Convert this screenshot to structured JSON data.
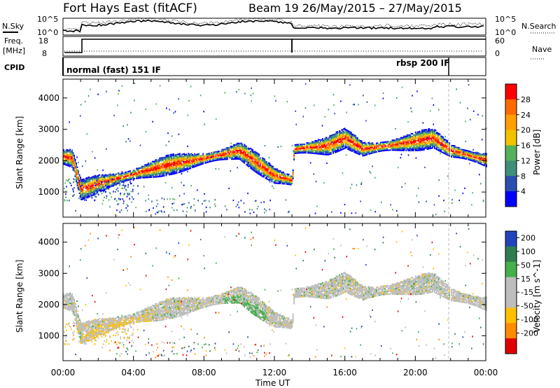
{
  "header": {
    "site": "Fort Hays East (fitACF)",
    "beam": "Beam 19 26/May/2015 – 27/May/2015"
  },
  "top_panels": {
    "nsky_label": "N.Sky",
    "nsearch_label": "N.Search",
    "nsky_ticks": [
      "10^5",
      "10^0"
    ],
    "nsearch_ticks": [
      "10^5",
      "10^0"
    ],
    "freq_label": "Freq.",
    "freq_unit": "[MHz]",
    "freq_ticks": [
      "18",
      "8"
    ],
    "nave_label": "Nave",
    "nave_ticks": [
      "60",
      "0"
    ],
    "cpid_label": "CPID",
    "cpid_modes": [
      "normal (fast) 151 IF",
      "rbsp 200 IF"
    ]
  },
  "colors": {
    "power": [
      "#0000ff",
      "#2a4fb0",
      "#3f8f7a",
      "#55b25a",
      "#f2c200",
      "#ffa000",
      "#ff6a00",
      "#ff0000"
    ],
    "velocity": [
      "#e00000",
      "#ff8c00",
      "#ffc000",
      "#bdbdbd",
      "#bdbdbd",
      "#44b04a",
      "#2e7d4f",
      "#2244bb"
    ]
  },
  "chart_data": [
    {
      "type": "heatmap",
      "name": "power",
      "ylabel": "Slant Range [km]",
      "yticks": [
        "4000",
        "3000",
        "2000",
        "1000"
      ],
      "ylim": [
        200,
        4600
      ],
      "colorbar_label": "Power [dB]",
      "colorbar_ticks": [
        "28",
        "24",
        "20",
        "16",
        "12",
        "8",
        "4"
      ],
      "band_center_km": [
        {
          "t": 0.0,
          "km": 2100
        },
        {
          "t": 0.5,
          "km": 2050
        },
        {
          "t": 1.0,
          "km": 1050
        },
        {
          "t": 2.0,
          "km": 1250
        },
        {
          "t": 4.0,
          "km": 1550
        },
        {
          "t": 6.0,
          "km": 1850
        },
        {
          "t": 8.0,
          "km": 2050
        },
        {
          "t": 10.0,
          "km": 2300
        },
        {
          "t": 11.0,
          "km": 1900
        },
        {
          "t": 12.0,
          "km": 1500
        },
        {
          "t": 13.0,
          "km": 1350
        },
        {
          "t": 13.1,
          "km": 2350
        },
        {
          "t": 15.0,
          "km": 2450
        },
        {
          "t": 16.0,
          "km": 2700
        },
        {
          "t": 17.0,
          "km": 2350
        },
        {
          "t": 19.0,
          "km": 2500
        },
        {
          "t": 21.0,
          "km": 2700
        },
        {
          "t": 22.0,
          "km": 2300
        },
        {
          "t": 24.0,
          "km": 2000
        }
      ]
    },
    {
      "type": "heatmap",
      "name": "velocity",
      "ylabel": "Slant Range [km]",
      "yticks": [
        "4000",
        "3000",
        "2000",
        "1000"
      ],
      "ylim": [
        200,
        4600
      ],
      "colorbar_label": "Velocity [m s^-1]",
      "colorbar_ticks": [
        "200",
        "100",
        "50",
        "15",
        "-15",
        "-50",
        "-100",
        "-200"
      ]
    }
  ],
  "x_axis": {
    "label": "Time UT",
    "ticks": [
      "00:00",
      "04:00",
      "08:00",
      "12:00",
      "16:00",
      "20:00",
      "00:00"
    ],
    "xlim": [
      0,
      24
    ]
  }
}
